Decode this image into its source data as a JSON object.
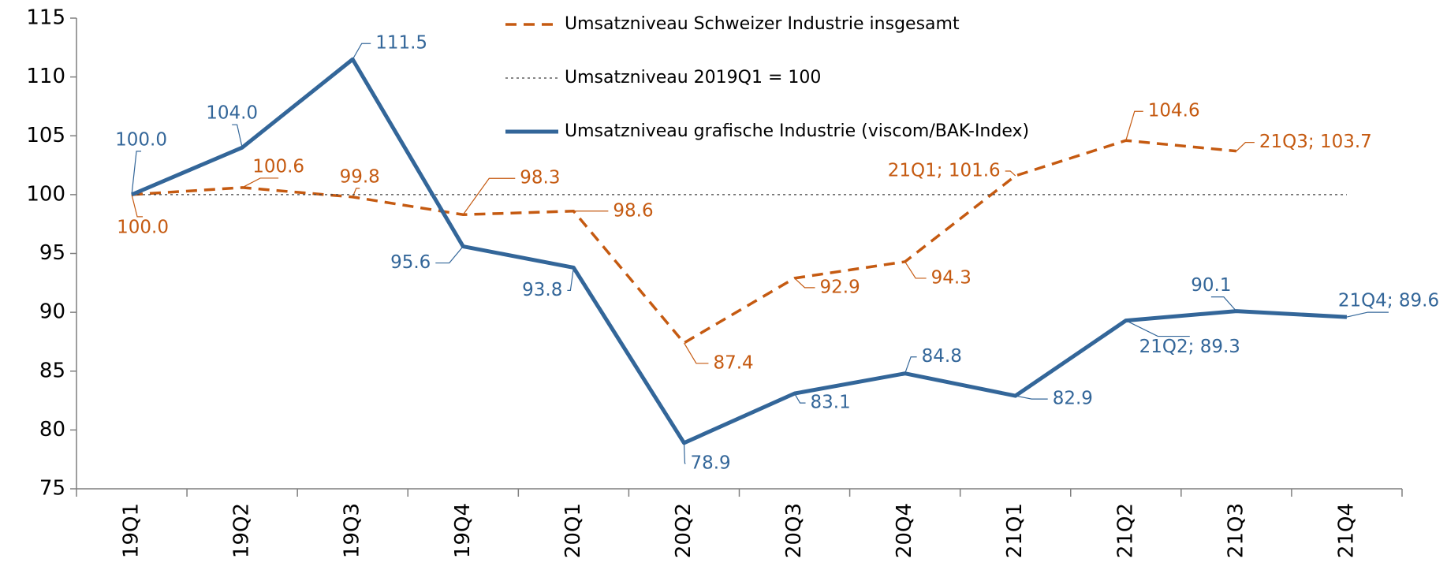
{
  "chart_data": {
    "type": "line",
    "categories": [
      "19Q1",
      "19Q2",
      "19Q3",
      "19Q4",
      "20Q1",
      "20Q2",
      "20Q3",
      "20Q4",
      "21Q1",
      "21Q2",
      "21Q3",
      "21Q4"
    ],
    "series": [
      {
        "name": "Umsatzniveau Schweizer Industrie insgesamt",
        "color": "#c55a11",
        "style": "dashed",
        "values": [
          100.0,
          100.6,
          99.8,
          98.3,
          98.6,
          87.4,
          92.9,
          94.3,
          101.6,
          104.6,
          103.7,
          null
        ],
        "value_labels": [
          "100.0",
          "100.6",
          "99.8",
          "98.3",
          "98.6",
          "87.4",
          "92.9",
          "94.3",
          "21Q1; 101.6",
          "104.6",
          "21Q3; 103.7",
          null
        ]
      },
      {
        "name": "Umsatzniveau 2019Q1 = 100",
        "color": "#404040",
        "style": "dotted",
        "values": [
          100,
          100,
          100,
          100,
          100,
          100,
          100,
          100,
          100,
          100,
          100,
          100
        ]
      },
      {
        "name": "Umsatzniveau grafische Industrie (viscom/BAK-Index)",
        "color": "#336699",
        "style": "solid",
        "values": [
          100.0,
          104.0,
          111.5,
          95.6,
          93.8,
          78.9,
          83.1,
          84.8,
          82.9,
          89.3,
          90.1,
          89.6
        ],
        "value_labels": [
          "100.0",
          "104.0",
          "111.5",
          "95.6",
          "93.8",
          "78.9",
          "83.1",
          "84.8",
          "82.9",
          "21Q2; 89.3",
          "90.1",
          "21Q4; 89.6"
        ]
      }
    ],
    "ylim": [
      75,
      115
    ],
    "yticks": [
      75,
      80,
      85,
      90,
      95,
      100,
      105,
      110,
      115
    ],
    "legend": "top-center"
  }
}
